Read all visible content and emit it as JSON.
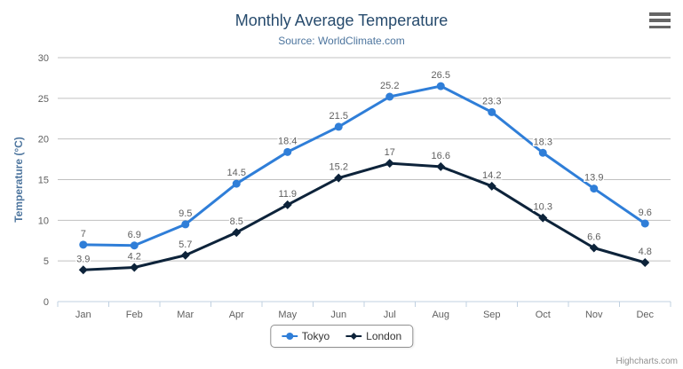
{
  "chart": {
    "title": "Monthly Average Temperature",
    "subtitle": "Source: WorldClimate.com",
    "credits": "Highcharts.com",
    "export_icon": "hamburger-menu-icon"
  },
  "chart_data": {
    "type": "line",
    "title": "Monthly Average Temperature",
    "subtitle": "Source: WorldClimate.com",
    "categories": [
      "Jan",
      "Feb",
      "Mar",
      "Apr",
      "May",
      "Jun",
      "Jul",
      "Aug",
      "Sep",
      "Oct",
      "Nov",
      "Dec"
    ],
    "series": [
      {
        "name": "Tokyo",
        "color": "#2f7ed8",
        "marker": "circle",
        "values": [
          7,
          6.9,
          9.5,
          14.5,
          18.4,
          21.5,
          25.2,
          26.5,
          23.3,
          18.3,
          13.9,
          9.6
        ]
      },
      {
        "name": "London",
        "color": "#0d233a",
        "marker": "diamond",
        "values": [
          3.9,
          4.2,
          5.7,
          8.5,
          11.9,
          15.2,
          17,
          16.6,
          14.2,
          10.3,
          6.6,
          4.8
        ]
      }
    ],
    "xlabel": "",
    "ylabel": "Temperature (°C)",
    "ylim": [
      0,
      30
    ],
    "yticks": [
      0,
      5,
      10,
      15,
      20,
      25,
      30
    ],
    "grid": true,
    "data_labels": true,
    "legend_position": "bottom"
  },
  "style": {
    "title_color": "#274b6d",
    "subtitle_color": "#4d759e",
    "yaxis_title_color": "#4d759e",
    "axis_label_color": "#606060",
    "data_label_color": "#606060",
    "grid_color": "#c0c0c0",
    "axis_line_color": "#c0d0e0",
    "legend_text_color": "#333333",
    "legend_border_color": "#909090",
    "credits_color": "#909090"
  }
}
